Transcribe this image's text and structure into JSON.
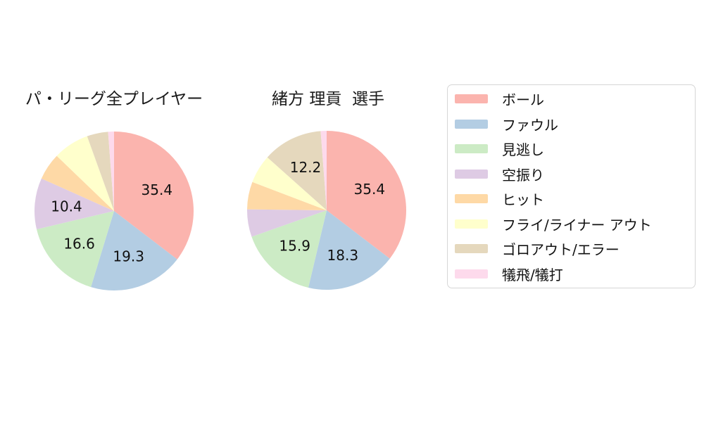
{
  "page": {
    "background": "#ffffff",
    "text_color": "#111111",
    "legend_border_color": "#d6d6d6"
  },
  "chart_data": [
    {
      "type": "pie",
      "title": "パ・リーグ全プレイヤー",
      "categories": [
        "ボール",
        "ファウル",
        "見逃し",
        "空振り",
        "ヒット",
        "フライ/ライナー アウト",
        "ゴロアウト/エラー",
        "犠飛/犠打"
      ],
      "values": [
        35.4,
        19.3,
        16.6,
        10.4,
        5.5,
        7.3,
        4.3,
        1.2
      ],
      "visible_value_labels": [
        "35.4",
        "19.3",
        "16.6",
        "10.4"
      ],
      "colors": [
        "#fbb4ae",
        "#b3cde3",
        "#ccebc5",
        "#decbe4",
        "#fed9a6",
        "#ffffcc",
        "#e5d8bd",
        "#fddaec"
      ],
      "start_angle_deg": 90,
      "direction": "clockwise",
      "label_min_pct": 10,
      "label_distance_frac": 0.6,
      "legend_position": "right"
    },
    {
      "type": "pie",
      "title": "緒方 理貢  選手",
      "categories": [
        "ボール",
        "ファウル",
        "見逃し",
        "空振り",
        "ヒット",
        "フライ/ライナー アウト",
        "ゴロアウト/エラー",
        "犠飛/犠打"
      ],
      "values": [
        35.4,
        18.3,
        15.9,
        5.6,
        5.6,
        5.8,
        12.2,
        1.2
      ],
      "visible_value_labels": [
        "35.4",
        "18.3",
        "15.9",
        "12.2"
      ],
      "colors": [
        "#fbb4ae",
        "#b3cde3",
        "#ccebc5",
        "#decbe4",
        "#fed9a6",
        "#ffffcc",
        "#e5d8bd",
        "#fddaec"
      ],
      "start_angle_deg": 90,
      "direction": "clockwise",
      "label_min_pct": 10,
      "label_distance_frac": 0.6,
      "legend_position": "right"
    }
  ],
  "legend": {
    "items": [
      {
        "label": "ボール",
        "color": "#fbb4ae"
      },
      {
        "label": "ファウル",
        "color": "#b3cde3"
      },
      {
        "label": "見逃し",
        "color": "#ccebc5"
      },
      {
        "label": "空振り",
        "color": "#decbe4"
      },
      {
        "label": "ヒット",
        "color": "#fed9a6"
      },
      {
        "label": "フライ/ライナー アウト",
        "color": "#ffffcc"
      },
      {
        "label": "ゴロアウト/エラー",
        "color": "#e5d8bd"
      },
      {
        "label": "犠飛/犠打",
        "color": "#fddaec"
      }
    ]
  }
}
